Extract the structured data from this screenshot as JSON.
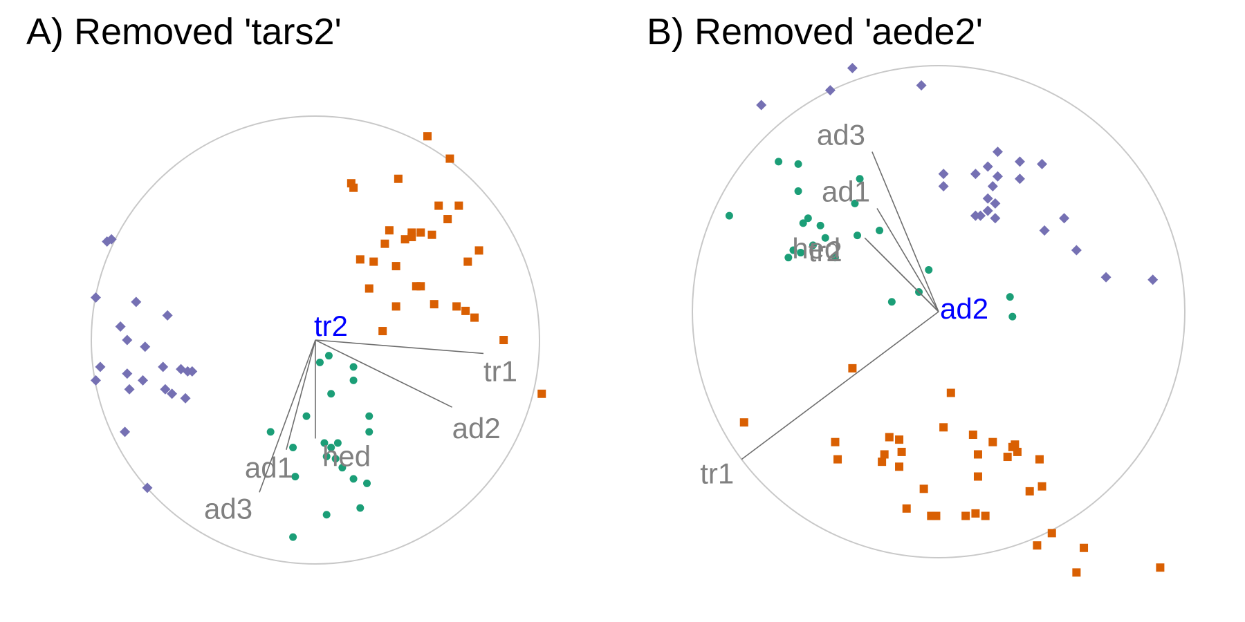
{
  "colors": {
    "circle": "#c8c8c8",
    "arrow": "#6e6e6e",
    "label": "#808080",
    "center_label": "#0000ff",
    "group1": "#1b9e77",
    "group2": "#d95f02",
    "group3": "#7570b3"
  },
  "chart_data": [
    {
      "type": "scatter",
      "title": "A) Removed 'tars2'",
      "center_variable": "tr2",
      "xlim": [
        -1,
        1
      ],
      "ylim": [
        -1,
        1
      ],
      "loadings": [
        {
          "label": "tr1",
          "x": 0.75,
          "y": -0.06
        },
        {
          "label": "ad2",
          "x": 0.61,
          "y": -0.3
        },
        {
          "label": "hed",
          "x": 0.0,
          "y": -0.44
        },
        {
          "label": "ad1",
          "x": -0.13,
          "y": -0.49
        },
        {
          "label": "ad3",
          "x": -0.25,
          "y": -0.68
        }
      ],
      "series": [
        {
          "marker": "circle",
          "color": "group1",
          "points": [
            [
              0.02,
              -0.1
            ],
            [
              0.06,
              -0.07
            ],
            [
              0.17,
              -0.12
            ],
            [
              0.17,
              -0.18
            ],
            [
              0.07,
              -0.24
            ],
            [
              -0.04,
              -0.34
            ],
            [
              0.24,
              -0.34
            ],
            [
              0.24,
              -0.41
            ],
            [
              -0.2,
              -0.41
            ],
            [
              -0.1,
              -0.48
            ],
            [
              0.04,
              -0.46
            ],
            [
              0.07,
              -0.48
            ],
            [
              0.09,
              -0.53
            ],
            [
              0.12,
              -0.57
            ],
            [
              0.17,
              -0.62
            ],
            [
              0.23,
              -0.64
            ],
            [
              -0.09,
              -0.61
            ],
            [
              0.2,
              -0.75
            ],
            [
              0.05,
              -0.78
            ],
            [
              -0.1,
              -0.88
            ],
            [
              0.1,
              -0.46
            ],
            [
              0.05,
              -0.52
            ]
          ]
        },
        {
          "marker": "square",
          "color": "group2",
          "points": [
            [
              0.5,
              0.91
            ],
            [
              0.6,
              0.81
            ],
            [
              0.16,
              0.7
            ],
            [
              0.17,
              0.68
            ],
            [
              0.37,
              0.72
            ],
            [
              0.64,
              0.6
            ],
            [
              0.55,
              0.6
            ],
            [
              0.59,
              0.54
            ],
            [
              0.33,
              0.49
            ],
            [
              0.47,
              0.48
            ],
            [
              0.43,
              0.48
            ],
            [
              0.52,
              0.47
            ],
            [
              0.4,
              0.45
            ],
            [
              0.31,
              0.43
            ],
            [
              0.43,
              0.46
            ],
            [
              0.2,
              0.36
            ],
            [
              0.26,
              0.35
            ],
            [
              0.36,
              0.33
            ],
            [
              0.73,
              0.4
            ],
            [
              0.68,
              0.35
            ],
            [
              0.24,
              0.23
            ],
            [
              0.45,
              0.24
            ],
            [
              0.47,
              0.24
            ],
            [
              0.36,
              0.15
            ],
            [
              0.53,
              0.16
            ],
            [
              0.63,
              0.15
            ],
            [
              0.67,
              0.13
            ],
            [
              0.71,
              0.1
            ],
            [
              0.3,
              0.04
            ],
            [
              0.84,
              0.0
            ],
            [
              1.01,
              -0.24
            ]
          ]
        },
        {
          "marker": "diamond",
          "color": "group3",
          "points": [
            [
              -0.93,
              0.44
            ],
            [
              -0.91,
              0.45
            ],
            [
              -0.98,
              0.19
            ],
            [
              -0.8,
              0.17
            ],
            [
              -0.66,
              0.11
            ],
            [
              -0.87,
              0.06
            ],
            [
              -0.84,
              0.0
            ],
            [
              -0.76,
              -0.03
            ],
            [
              -0.96,
              -0.12
            ],
            [
              -0.84,
              -0.15
            ],
            [
              -0.68,
              -0.12
            ],
            [
              -0.6,
              -0.13
            ],
            [
              -0.57,
              -0.14
            ],
            [
              -0.55,
              -0.14
            ],
            [
              -0.77,
              -0.18
            ],
            [
              -0.98,
              -0.18
            ],
            [
              -0.83,
              -0.22
            ],
            [
              -0.67,
              -0.22
            ],
            [
              -0.64,
              -0.24
            ],
            [
              -0.58,
              -0.26
            ],
            [
              -0.85,
              -0.41
            ],
            [
              -0.75,
              -0.66
            ]
          ]
        }
      ]
    },
    {
      "type": "scatter",
      "title": "B) Removed 'aede2'",
      "center_variable": "ad2",
      "xlim": [
        -1,
        1
      ],
      "ylim": [
        -1,
        1
      ],
      "loadings": [
        {
          "label": "ad3",
          "x": -0.27,
          "y": 0.65
        },
        {
          "label": "ad1",
          "x": -0.25,
          "y": 0.42
        },
        {
          "label": "hed",
          "x": -0.3,
          "y": 0.3
        },
        {
          "label": "tr2",
          "x": -0.29,
          "y": 0.29
        },
        {
          "label": "tr1",
          "x": -0.8,
          "y": -0.6
        }
      ],
      "series": [
        {
          "marker": "circle",
          "color": "group1",
          "points": [
            [
              -0.65,
              0.61
            ],
            [
              -0.57,
              0.6
            ],
            [
              -0.32,
              0.54
            ],
            [
              -0.57,
              0.49
            ],
            [
              -0.85,
              0.39
            ],
            [
              -0.53,
              0.38
            ],
            [
              -0.55,
              0.36
            ],
            [
              -0.48,
              0.35
            ],
            [
              -0.34,
              0.44
            ],
            [
              -0.24,
              0.33
            ],
            [
              -0.33,
              0.31
            ],
            [
              -0.51,
              0.27
            ],
            [
              -0.59,
              0.25
            ],
            [
              -0.56,
              0.24
            ],
            [
              -0.61,
              0.22
            ],
            [
              -0.04,
              0.17
            ],
            [
              -0.08,
              0.08
            ],
            [
              -0.19,
              0.04
            ],
            [
              0.29,
              0.06
            ],
            [
              0.3,
              -0.02
            ],
            [
              -0.42,
              0.22
            ],
            [
              -0.46,
              0.3
            ]
          ]
        },
        {
          "marker": "square",
          "color": "group2",
          "points": [
            [
              -0.35,
              -0.23
            ],
            [
              0.05,
              -0.33
            ],
            [
              -0.79,
              -0.45
            ],
            [
              -0.2,
              -0.51
            ],
            [
              0.02,
              -0.47
            ],
            [
              0.14,
              -0.5
            ],
            [
              -0.42,
              -0.53
            ],
            [
              -0.16,
              -0.52
            ],
            [
              -0.15,
              -0.57
            ],
            [
              0.22,
              -0.53
            ],
            [
              0.3,
              -0.55
            ],
            [
              0.32,
              -0.57
            ],
            [
              0.31,
              -0.54
            ],
            [
              0.28,
              -0.59
            ],
            [
              -0.41,
              -0.6
            ],
            [
              -0.22,
              -0.58
            ],
            [
              -0.23,
              -0.61
            ],
            [
              0.16,
              -0.58
            ],
            [
              0.41,
              -0.6
            ],
            [
              -0.16,
              -0.63
            ],
            [
              0.16,
              -0.67
            ],
            [
              0.42,
              -0.71
            ],
            [
              -0.06,
              -0.72
            ],
            [
              0.37,
              -0.73
            ],
            [
              0.15,
              -0.82
            ],
            [
              0.19,
              -0.83
            ],
            [
              -0.13,
              -0.8
            ],
            [
              -0.03,
              -0.83
            ],
            [
              -0.01,
              -0.83
            ],
            [
              0.11,
              -0.83
            ],
            [
              0.46,
              -0.9
            ],
            [
              0.4,
              -0.95
            ],
            [
              0.59,
              -0.96
            ],
            [
              0.56,
              -1.06
            ],
            [
              0.9,
              -1.04
            ]
          ]
        },
        {
          "marker": "diamond",
          "color": "group3",
          "points": [
            [
              -0.35,
              0.99
            ],
            [
              -0.44,
              0.9
            ],
            [
              -0.07,
              0.92
            ],
            [
              -0.72,
              0.84
            ],
            [
              0.24,
              0.65
            ],
            [
              0.33,
              0.61
            ],
            [
              0.2,
              0.59
            ],
            [
              0.24,
              0.55
            ],
            [
              0.42,
              0.6
            ],
            [
              0.02,
              0.56
            ],
            [
              0.15,
              0.56
            ],
            [
              0.33,
              0.54
            ],
            [
              0.22,
              0.51
            ],
            [
              0.02,
              0.51
            ],
            [
              0.23,
              0.44
            ],
            [
              0.2,
              0.46
            ],
            [
              0.2,
              0.41
            ],
            [
              0.17,
              0.39
            ],
            [
              0.23,
              0.38
            ],
            [
              0.15,
              0.39
            ],
            [
              0.51,
              0.38
            ],
            [
              0.43,
              0.33
            ],
            [
              0.56,
              0.25
            ],
            [
              0.68,
              0.14
            ],
            [
              0.87,
              0.13
            ]
          ]
        }
      ]
    }
  ]
}
